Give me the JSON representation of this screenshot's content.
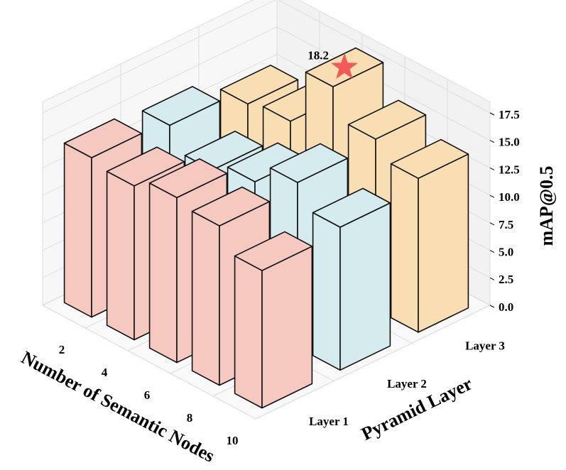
{
  "chart_data": {
    "type": "bar3d",
    "xlabel": "Number of Semantic Nodes",
    "ylabel": "Pyramid Layer",
    "zlabel": "mAP@0.5",
    "categories": [
      "2",
      "4",
      "6",
      "8",
      "10"
    ],
    "series": [
      {
        "name": "Layer 1",
        "color": "#f5c8c0",
        "values": [
          14.5,
          14,
          15,
          14.5,
          12.5
        ]
      },
      {
        "name": "Layer 2",
        "color": "#d6ebee",
        "values": [
          14,
          12,
          13,
          15,
          13
        ]
      },
      {
        "name": "Layer 3",
        "color": "#f9deb3",
        "values": [
          12.5,
          13,
          18.2,
          15.5,
          14
        ]
      }
    ],
    "zlim": [
      0,
      18.5
    ],
    "zticks": [
      {
        "value": 0,
        "label": "0.0"
      },
      {
        "value": 2.5,
        "label": "2.5"
      },
      {
        "value": 5,
        "label": "5.0"
      },
      {
        "value": 7.5,
        "label": "7.5"
      },
      {
        "value": 10,
        "label": "10.0"
      },
      {
        "value": 12.5,
        "label": "12.5"
      },
      {
        "value": 15,
        "label": "15.0"
      },
      {
        "value": 17.5,
        "label": "17.5"
      }
    ],
    "grid": true
  }
}
